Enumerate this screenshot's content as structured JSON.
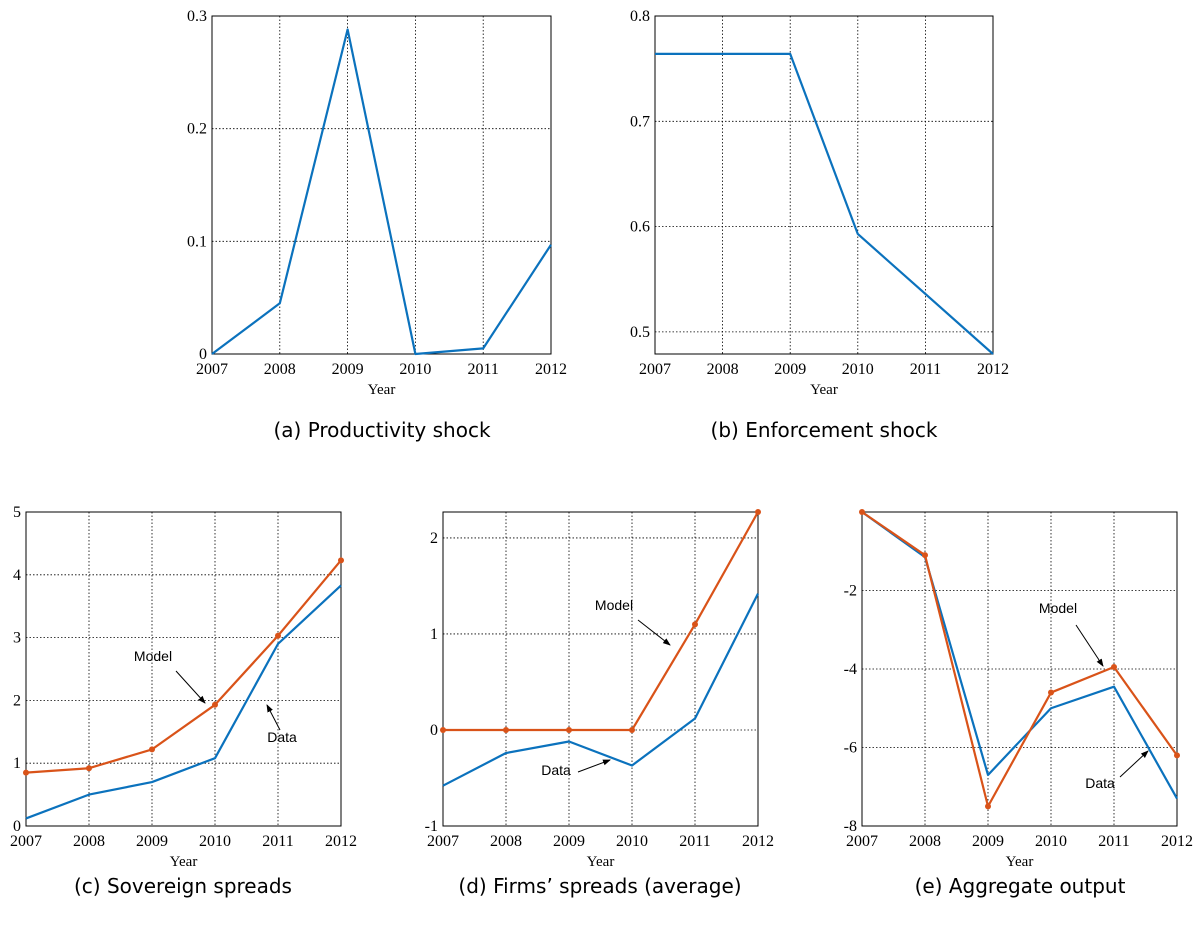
{
  "chart_data": [
    {
      "type": "line",
      "caption": "(a) Productivity shock",
      "xlabel": "Year",
      "x": [
        2007,
        2008,
        2009,
        2010,
        2011,
        2012
      ],
      "xlim": [
        2007,
        2012
      ],
      "xticks": [
        2007,
        2008,
        2009,
        2010,
        2011,
        2012
      ],
      "ylim": [
        0,
        0.3
      ],
      "yticks": [
        0,
        0.1,
        0.2,
        0.3
      ],
      "grid": true,
      "series": [
        {
          "color": "#0b72bd",
          "values": [
            0,
            0.045,
            0.288,
            0,
            0.005,
            0.097
          ]
        }
      ]
    },
    {
      "type": "line",
      "caption": "(b) Enforcement shock",
      "xlabel": "Year",
      "x": [
        2007,
        2008,
        2009,
        2010,
        2011,
        2012
      ],
      "xlim": [
        2007,
        2012
      ],
      "xticks": [
        2007,
        2008,
        2009,
        2010,
        2011,
        2012
      ],
      "ylim": [
        0.479,
        0.8
      ],
      "yticks": [
        0.5,
        0.6,
        0.7,
        0.8
      ],
      "grid": true,
      "series": [
        {
          "color": "#0b72bd",
          "values": [
            0.764,
            0.764,
            0.764,
            0.593,
            0.536,
            0.479
          ]
        }
      ]
    },
    {
      "type": "line",
      "caption": "(c) Sovereign spreads",
      "xlabel": "Year",
      "x": [
        2007,
        2008,
        2009,
        2010,
        2011,
        2012
      ],
      "xlim": [
        2007,
        2012
      ],
      "xticks": [
        2007,
        2008,
        2009,
        2010,
        2011,
        2012
      ],
      "ylim": [
        0,
        5
      ],
      "yticks": [
        0,
        1,
        2,
        3,
        4,
        5
      ],
      "grid": true,
      "series": [
        {
          "name": "Data",
          "color": "#0b72bd",
          "values": [
            0.12,
            0.5,
            0.7,
            1.08,
            2.9,
            3.83
          ]
        },
        {
          "name": "Model",
          "color": "#d95319",
          "marker": "circle",
          "values": [
            0.85,
            0.92,
            1.22,
            1.93,
            3.03,
            4.23
          ]
        }
      ]
    },
    {
      "type": "line",
      "caption": "(d) Firms’ spreads (average)",
      "xlabel": "Year",
      "x": [
        2007,
        2008,
        2009,
        2010,
        2011,
        2012
      ],
      "xlim": [
        2007,
        2012
      ],
      "xticks": [
        2007,
        2008,
        2009,
        2010,
        2011,
        2012
      ],
      "ylim": [
        -1,
        2.27
      ],
      "yticks": [
        -1,
        0,
        1,
        2
      ],
      "grid": true,
      "series": [
        {
          "name": "Data",
          "color": "#0b72bd",
          "values": [
            -0.58,
            -0.24,
            -0.12,
            -0.37,
            0.12,
            1.42
          ]
        },
        {
          "name": "Model",
          "color": "#d95319",
          "marker": "circle",
          "values": [
            0,
            0,
            0,
            0,
            1.1,
            2.27
          ]
        }
      ]
    },
    {
      "type": "line",
      "caption": "(e) Aggregate output",
      "xlabel": "Year",
      "x": [
        2007,
        2008,
        2009,
        2010,
        2011,
        2012
      ],
      "xlim": [
        2007,
        2012
      ],
      "xticks": [
        2007,
        2008,
        2009,
        2010,
        2011,
        2012
      ],
      "ylim": [
        -8,
        0
      ],
      "yticks": [
        -8,
        -6,
        -4,
        -2
      ],
      "grid": true,
      "series": [
        {
          "name": "Data",
          "color": "#0b72bd",
          "values": [
            0,
            -1.15,
            -6.7,
            -5.0,
            -4.45,
            -7.3
          ]
        },
        {
          "name": "Model",
          "color": "#d95319",
          "marker": "circle",
          "values": [
            0,
            -1.1,
            -7.5,
            -4.6,
            -3.95,
            -6.2
          ]
        }
      ]
    }
  ]
}
